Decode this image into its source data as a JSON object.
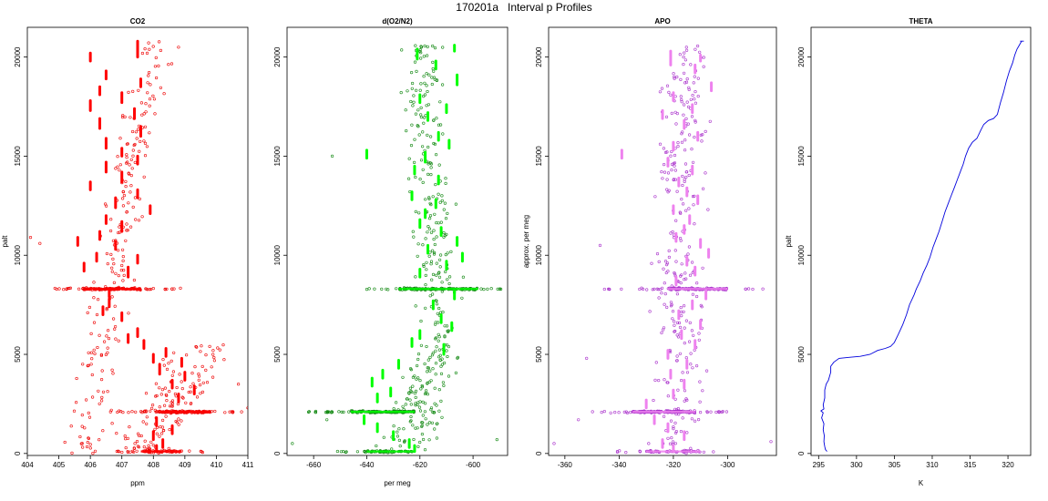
{
  "figure_title": "170201a   Interval p Profiles",
  "chart_data": [
    {
      "type": "scatter",
      "title": "CO2",
      "xlabel": "ppm",
      "ylabel": "palt",
      "xlim": [
        404,
        411
      ],
      "ylim": [
        -100,
        21500
      ],
      "xticks": [
        404,
        405,
        406,
        407,
        408,
        409,
        410,
        411
      ],
      "yticks": [
        0,
        5000,
        10000,
        15000,
        20000
      ],
      "point_color": "#ee0000",
      "seg_color": "#ff0000",
      "segments": [
        [
          407.5,
          20000,
          20800
        ],
        [
          406.0,
          19800,
          20200
        ],
        [
          406.5,
          18900,
          19300
        ],
        [
          407.6,
          18500,
          18900
        ],
        [
          406.3,
          18100,
          18500
        ],
        [
          407.0,
          17700,
          18200
        ],
        [
          406.0,
          17300,
          17800
        ],
        [
          407.4,
          16900,
          17400
        ],
        [
          406.3,
          16400,
          16900
        ],
        [
          407.6,
          16000,
          16500
        ],
        [
          406.5,
          15400,
          15900
        ],
        [
          407.0,
          15000,
          15400
        ],
        [
          407.5,
          14600,
          15000
        ],
        [
          406.5,
          14200,
          14700
        ],
        [
          407.0,
          13700,
          14200
        ],
        [
          406.0,
          13300,
          13700
        ],
        [
          407.5,
          12900,
          13300
        ],
        [
          406.8,
          12400,
          12900
        ],
        [
          407.9,
          12100,
          12500
        ],
        [
          406.5,
          11600,
          12000
        ],
        [
          407.0,
          11200,
          11700
        ],
        [
          406.3,
          10800,
          11200
        ],
        [
          405.6,
          10500,
          10900
        ],
        [
          406.8,
          10300,
          10700
        ],
        [
          406.2,
          9700,
          10100
        ],
        [
          407.5,
          9600,
          10000
        ],
        [
          405.8,
          9200,
          9600
        ],
        [
          407.2,
          8900,
          9400
        ],
        [
          406.6,
          7900,
          8300
        ],
        [
          406.6,
          7400,
          7800
        ],
        [
          406.4,
          7000,
          7400
        ],
        [
          407.0,
          6700,
          7100
        ],
        [
          407.5,
          5900,
          6300
        ],
        [
          407.2,
          5600,
          6000
        ],
        [
          407.7,
          5300,
          5700
        ],
        [
          408.4,
          4900,
          5300
        ],
        [
          408.0,
          4600,
          5000
        ],
        [
          408.9,
          4400,
          4800
        ],
        [
          408.2,
          4000,
          4500
        ],
        [
          409.0,
          3700,
          4100
        ],
        [
          408.6,
          3300,
          3700
        ],
        [
          409.3,
          3000,
          3400
        ],
        [
          408.8,
          2600,
          3000
        ],
        [
          408.1,
          1400,
          1800
        ],
        [
          408.6,
          1000,
          1400
        ],
        [
          408.0,
          700,
          1100
        ],
        [
          408.3,
          300,
          700
        ],
        [
          408.1,
          100,
          400
        ]
      ],
      "bands": [
        {
          "y": 8300,
          "xmin": 404.8,
          "xmax": 408.9,
          "xcore": [
            405.8,
            407.6
          ],
          "n": 130,
          "seed": 11
        },
        {
          "y": 2100,
          "xmin": 406.4,
          "xmax": 410.6,
          "xcore": [
            408.2,
            409.8
          ],
          "n": 150,
          "seed": 12
        },
        {
          "y": 100,
          "xmin": 406.8,
          "xmax": 409.6,
          "xcore": [
            407.6,
            408.9
          ],
          "n": 60,
          "seed": 13
        }
      ],
      "scatter": [
        {
          "y0": 0,
          "y1": 20800,
          "xa": 405.8,
          "xb": 408.0,
          "spread": 0.55,
          "n": 220,
          "seed": 21
        },
        {
          "y0": 0,
          "y1": 5500,
          "xa": 407.6,
          "xb": 409.6,
          "spread": 0.9,
          "n": 140,
          "seed": 22
        }
      ],
      "extra_points": [
        [
          404.1,
          10900
        ],
        [
          404.4,
          10600
        ],
        [
          410.8,
          2100
        ],
        [
          411.0,
          2300
        ],
        [
          410.7,
          3500
        ],
        [
          408.8,
          20500
        ]
      ]
    },
    {
      "type": "scatter",
      "title": "d(O2/N2)",
      "xlabel": "per meg",
      "ylabel": "",
      "xlim": [
        -670,
        -587
      ],
      "ylim": [
        -100,
        21500
      ],
      "xticks": [
        -660,
        -640,
        -620,
        -600
      ],
      "yticks": [
        0,
        5000,
        10000,
        15000,
        20000
      ],
      "point_color": "#118811",
      "seg_color": "#00ff00",
      "segments": [
        [
          -621,
          19900,
          20400
        ],
        [
          -607,
          20300,
          20600
        ],
        [
          -614,
          19400,
          19800
        ],
        [
          -606,
          18600,
          19100
        ],
        [
          -620,
          17700,
          18100
        ],
        [
          -610,
          17200,
          17600
        ],
        [
          -617,
          16800,
          17200
        ],
        [
          -613,
          15800,
          16200
        ],
        [
          -609,
          15400,
          15800
        ],
        [
          -618,
          14700,
          15200
        ],
        [
          -640,
          14900,
          15300
        ],
        [
          -622,
          14100,
          14500
        ],
        [
          -613,
          13600,
          14000
        ],
        [
          -623,
          12800,
          13200
        ],
        [
          -614,
          12400,
          12800
        ],
        [
          -618,
          11900,
          12300
        ],
        [
          -620,
          11400,
          11800
        ],
        [
          -612,
          11000,
          11400
        ],
        [
          -606,
          10500,
          10900
        ],
        [
          -617,
          10100,
          10500
        ],
        [
          -604,
          9700,
          10100
        ],
        [
          -610,
          9300,
          9700
        ],
        [
          -620,
          8900,
          9300
        ],
        [
          -607,
          7800,
          8200
        ],
        [
          -615,
          7300,
          7700
        ],
        [
          -612,
          6600,
          7000
        ],
        [
          -608,
          6200,
          6600
        ],
        [
          -620,
          5800,
          6200
        ],
        [
          -623,
          5400,
          5800
        ],
        [
          -611,
          5000,
          5500
        ],
        [
          -628,
          4300,
          4700
        ],
        [
          -634,
          3800,
          4200
        ],
        [
          -638,
          3400,
          3800
        ],
        [
          -631,
          2900,
          3300
        ],
        [
          -636,
          2600,
          3000
        ],
        [
          -641,
          1500,
          1900
        ],
        [
          -636,
          1100,
          1500
        ],
        [
          -630,
          700,
          1100
        ],
        [
          -624,
          300,
          700
        ],
        [
          -622,
          100,
          400
        ]
      ],
      "bands": [
        {
          "y": 8300,
          "xmin": -640,
          "xmax": -589,
          "xcore": [
            -628,
            -598
          ],
          "n": 130,
          "seed": 31
        },
        {
          "y": 2100,
          "xmin": -662,
          "xmax": -612,
          "xcore": [
            -646,
            -622
          ],
          "n": 150,
          "seed": 32
        },
        {
          "y": 100,
          "xmin": -653,
          "xmax": -617,
          "xcore": [
            -640,
            -622
          ],
          "n": 60,
          "seed": 33
        }
      ],
      "scatter": [
        {
          "y0": 5500,
          "y1": 20700,
          "xa": -612,
          "xb": -620,
          "spread": 7,
          "n": 220,
          "seed": 41
        },
        {
          "y0": 0,
          "y1": 5500,
          "xa": -628,
          "xb": -612,
          "spread": 9,
          "n": 140,
          "seed": 42
        }
      ],
      "extra_points": [
        [
          -653,
          15000
        ],
        [
          -668,
          500
        ],
        [
          -655,
          1700
        ],
        [
          -591,
          700
        ],
        [
          -590,
          8300
        ]
      ]
    },
    {
      "type": "scatter",
      "title": "APO",
      "xlabel": "",
      "ylabel": "approx. per meg",
      "xlim": [
        -366,
        -282
      ],
      "ylim": [
        -100,
        21500
      ],
      "xticks": [
        -360,
        -340,
        -320,
        -300
      ],
      "yticks": [
        0,
        5000,
        10000,
        15000,
        20000
      ],
      "point_color": "#aa33cc",
      "seg_color": "#ee82ee",
      "segments": [
        [
          -321,
          19600,
          20300
        ],
        [
          -310,
          19800,
          20100
        ],
        [
          -312,
          19200,
          19600
        ],
        [
          -306,
          18300,
          18700
        ],
        [
          -320,
          17800,
          18200
        ],
        [
          -313,
          17200,
          17600
        ],
        [
          -324,
          16900,
          17300
        ],
        [
          -316,
          16400,
          16800
        ],
        [
          -311,
          15800,
          16200
        ],
        [
          -320,
          15300,
          15700
        ],
        [
          -339,
          14900,
          15300
        ],
        [
          -322,
          14500,
          14900
        ],
        [
          -313,
          14100,
          14500
        ],
        [
          -318,
          13500,
          13900
        ],
        [
          -315,
          13000,
          13400
        ],
        [
          -311,
          12600,
          13000
        ],
        [
          -320,
          12100,
          12500
        ],
        [
          -314,
          11600,
          12000
        ],
        [
          -316,
          11100,
          11500
        ],
        [
          -319,
          10700,
          11100
        ],
        [
          -310,
          10400,
          10800
        ],
        [
          -307,
          9900,
          10300
        ],
        [
          -315,
          9500,
          9900
        ],
        [
          -312,
          9000,
          9400
        ],
        [
          -319,
          8500,
          8900
        ],
        [
          -308,
          7800,
          8200
        ],
        [
          -313,
          7300,
          7700
        ],
        [
          -318,
          6800,
          7200
        ],
        [
          -310,
          6300,
          6700
        ],
        [
          -317,
          5800,
          6200
        ],
        [
          -312,
          5300,
          5700
        ],
        [
          -322,
          4800,
          5200
        ],
        [
          -315,
          4300,
          4700
        ],
        [
          -321,
          3800,
          4200
        ],
        [
          -316,
          3300,
          3700
        ],
        [
          -320,
          2800,
          3200
        ],
        [
          -330,
          2300,
          2700
        ],
        [
          -327,
          1500,
          1900
        ],
        [
          -322,
          1100,
          1500
        ],
        [
          -316,
          700,
          1100
        ],
        [
          -324,
          300,
          700
        ],
        [
          -320,
          100,
          400
        ]
      ],
      "bands": [
        {
          "y": 8300,
          "xmin": -346,
          "xmax": -288,
          "xcore": [
            -322,
            -300
          ],
          "n": 130,
          "seed": 51
        },
        {
          "y": 2100,
          "xmin": -350,
          "xmax": -298,
          "xcore": [
            -335,
            -312
          ],
          "n": 150,
          "seed": 52
        },
        {
          "y": 100,
          "xmin": -342,
          "xmax": -300,
          "xcore": [
            -330,
            -310
          ],
          "n": 60,
          "seed": 53
        }
      ],
      "scatter": [
        {
          "y0": 0,
          "y1": 20600,
          "xa": -320,
          "xb": -315,
          "spread": 8,
          "n": 300,
          "seed": 61
        }
      ],
      "extra_points": [
        [
          -364,
          500
        ],
        [
          -352,
          4800
        ],
        [
          -355,
          1700
        ],
        [
          -347,
          10500
        ],
        [
          -284,
          600
        ],
        [
          -287,
          8300
        ]
      ]
    },
    {
      "type": "line",
      "title": "THETA",
      "xlabel": "K",
      "ylabel": "palt",
      "xlim": [
        294,
        323
      ],
      "ylim": [
        -100,
        21500
      ],
      "xticks": [
        295,
        300,
        305,
        310,
        315,
        320
      ],
      "yticks": [
        0,
        5000,
        10000,
        15000,
        20000
      ],
      "line_color": "#0000dd",
      "profile": [
        [
          296.1,
          100
        ],
        [
          295.9,
          200
        ],
        [
          295.8,
          350
        ],
        [
          295.7,
          600
        ],
        [
          295.75,
          900
        ],
        [
          295.6,
          1200
        ],
        [
          295.7,
          1500
        ],
        [
          295.4,
          1800
        ],
        [
          295.6,
          2050
        ],
        [
          295.3,
          2150
        ],
        [
          295.7,
          2250
        ],
        [
          295.6,
          2450
        ],
        [
          295.8,
          2800
        ],
        [
          295.8,
          3200
        ],
        [
          296.0,
          3500
        ],
        [
          296.3,
          3700
        ],
        [
          296.6,
          4100
        ],
        [
          296.6,
          4400
        ],
        [
          297.0,
          4600
        ],
        [
          297.7,
          4800
        ],
        [
          299.0,
          4850
        ],
        [
          300.5,
          4900
        ],
        [
          301.8,
          5000
        ],
        [
          302.8,
          5200
        ],
        [
          303.8,
          5300
        ],
        [
          304.5,
          5400
        ],
        [
          305.0,
          5600
        ],
        [
          305.5,
          6000
        ],
        [
          306.1,
          6500
        ],
        [
          306.6,
          7000
        ],
        [
          307.0,
          7500
        ],
        [
          307.6,
          8000
        ],
        [
          307.9,
          8300
        ],
        [
          308.4,
          8700
        ],
        [
          308.8,
          9100
        ],
        [
          309.3,
          9500
        ],
        [
          309.7,
          9900
        ],
        [
          310.1,
          10400
        ],
        [
          310.5,
          10800
        ],
        [
          310.9,
          11200
        ],
        [
          311.3,
          11700
        ],
        [
          311.7,
          12200
        ],
        [
          312.1,
          12600
        ],
        [
          312.5,
          13000
        ],
        [
          312.9,
          13400
        ],
        [
          313.3,
          13800
        ],
        [
          313.7,
          14200
        ],
        [
          314.1,
          14600
        ],
        [
          314.4,
          15000
        ],
        [
          314.8,
          15400
        ],
        [
          315.3,
          15700
        ],
        [
          315.9,
          15900
        ],
        [
          316.4,
          16300
        ],
        [
          316.8,
          16600
        ],
        [
          317.4,
          16800
        ],
        [
          318.1,
          16900
        ],
        [
          318.6,
          17100
        ],
        [
          319.0,
          17700
        ],
        [
          319.4,
          18200
        ],
        [
          319.8,
          18800
        ],
        [
          320.2,
          19300
        ],
        [
          320.6,
          19700
        ],
        [
          320.9,
          20100
        ],
        [
          321.2,
          20400
        ],
        [
          321.5,
          20600
        ],
        [
          321.8,
          20800
        ],
        [
          321.6,
          20800
        ],
        [
          322.1,
          20800
        ]
      ]
    }
  ]
}
